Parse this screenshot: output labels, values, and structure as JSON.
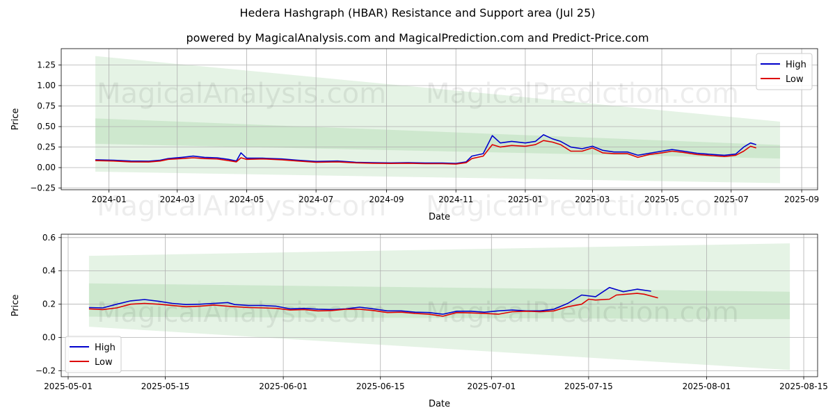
{
  "title": "Hedera Hashgraph (HBAR) Resistance and Support area (Jul 25)",
  "subtitle": "powered by MagicalAnalysis.com and MagicalPrediction.com and Predict-Price.com",
  "watermarks": [
    "MagicalAnalysis.com",
    "MagicalPrediction.com"
  ],
  "colors": {
    "high": "#0000cc",
    "low": "#dd0000",
    "band": "#2ca02c",
    "grid": "#b0b0b0"
  },
  "chart_data": [
    {
      "type": "line",
      "xlabel": "Date",
      "ylabel": "Price",
      "grid": true,
      "legend_position": "top-right",
      "x_ticks": [
        "2024-01",
        "2024-03",
        "2024-05",
        "2024-07",
        "2024-09",
        "2024-11",
        "2025-01",
        "2025-03",
        "2025-05",
        "2025-07",
        "2025-09"
      ],
      "y_ticks": [
        "−0.25",
        "0.00",
        "0.25",
        "0.50",
        "0.75",
        "1.00",
        "1.25"
      ],
      "ylim": [
        -0.27,
        1.45
      ],
      "xlim": [
        "2023-11-20",
        "2025-09-15"
      ],
      "series": [
        {
          "name": "High",
          "color": "#0000cc",
          "points": [
            [
              "2023-12-20",
              0.095
            ],
            [
              "2024-01-05",
              0.09
            ],
            [
              "2024-01-20",
              0.08
            ],
            [
              "2024-02-05",
              0.078
            ],
            [
              "2024-02-15",
              0.09
            ],
            [
              "2024-02-22",
              0.11
            ],
            [
              "2024-03-05",
              0.125
            ],
            [
              "2024-03-15",
              0.14
            ],
            [
              "2024-03-25",
              0.125
            ],
            [
              "2024-04-05",
              0.12
            ],
            [
              "2024-04-15",
              0.1
            ],
            [
              "2024-04-22",
              0.08
            ],
            [
              "2024-04-26",
              0.18
            ],
            [
              "2024-05-01",
              0.115
            ],
            [
              "2024-05-15",
              0.115
            ],
            [
              "2024-06-01",
              0.105
            ],
            [
              "2024-06-15",
              0.09
            ],
            [
              "2024-07-01",
              0.075
            ],
            [
              "2024-07-20",
              0.08
            ],
            [
              "2024-08-05",
              0.065
            ],
            [
              "2024-08-20",
              0.06
            ],
            [
              "2024-09-05",
              0.057
            ],
            [
              "2024-09-20",
              0.06
            ],
            [
              "2024-10-05",
              0.055
            ],
            [
              "2024-10-20",
              0.055
            ],
            [
              "2024-11-01",
              0.05
            ],
            [
              "2024-11-10",
              0.07
            ],
            [
              "2024-11-15",
              0.14
            ],
            [
              "2024-11-25",
              0.17
            ],
            [
              "2024-12-03",
              0.39
            ],
            [
              "2024-12-10",
              0.3
            ],
            [
              "2024-12-20",
              0.32
            ],
            [
              "2025-01-01",
              0.3
            ],
            [
              "2025-01-10",
              0.32
            ],
            [
              "2025-01-17",
              0.4
            ],
            [
              "2025-01-25",
              0.35
            ],
            [
              "2025-02-01",
              0.32
            ],
            [
              "2025-02-10",
              0.25
            ],
            [
              "2025-02-20",
              0.23
            ],
            [
              "2025-03-01",
              0.26
            ],
            [
              "2025-03-10",
              0.21
            ],
            [
              "2025-03-20",
              0.19
            ],
            [
              "2025-04-01",
              0.19
            ],
            [
              "2025-04-10",
              0.15
            ],
            [
              "2025-04-20",
              0.175
            ],
            [
              "2025-05-01",
              0.2
            ],
            [
              "2025-05-10",
              0.22
            ],
            [
              "2025-05-20",
              0.2
            ],
            [
              "2025-06-01",
              0.175
            ],
            [
              "2025-06-15",
              0.16
            ],
            [
              "2025-06-25",
              0.15
            ],
            [
              "2025-07-05",
              0.165
            ],
            [
              "2025-07-12",
              0.25
            ],
            [
              "2025-07-18",
              0.3
            ],
            [
              "2025-07-23",
              0.28
            ]
          ]
        },
        {
          "name": "Low",
          "color": "#dd0000",
          "points": [
            [
              "2023-12-20",
              0.085
            ],
            [
              "2024-01-05",
              0.08
            ],
            [
              "2024-01-20",
              0.07
            ],
            [
              "2024-02-05",
              0.068
            ],
            [
              "2024-02-15",
              0.08
            ],
            [
              "2024-02-22",
              0.1
            ],
            [
              "2024-03-05",
              0.11
            ],
            [
              "2024-03-15",
              0.12
            ],
            [
              "2024-03-25",
              0.11
            ],
            [
              "2024-04-05",
              0.105
            ],
            [
              "2024-04-15",
              0.085
            ],
            [
              "2024-04-22",
              0.07
            ],
            [
              "2024-04-26",
              0.12
            ],
            [
              "2024-05-01",
              0.1
            ],
            [
              "2024-05-15",
              0.105
            ],
            [
              "2024-06-01",
              0.095
            ],
            [
              "2024-06-15",
              0.08
            ],
            [
              "2024-07-01",
              0.065
            ],
            [
              "2024-07-20",
              0.07
            ],
            [
              "2024-08-05",
              0.058
            ],
            [
              "2024-08-20",
              0.053
            ],
            [
              "2024-09-05",
              0.05
            ],
            [
              "2024-09-20",
              0.053
            ],
            [
              "2024-10-05",
              0.048
            ],
            [
              "2024-10-20",
              0.048
            ],
            [
              "2024-11-01",
              0.043
            ],
            [
              "2024-11-10",
              0.06
            ],
            [
              "2024-11-15",
              0.11
            ],
            [
              "2024-11-25",
              0.14
            ],
            [
              "2024-12-03",
              0.28
            ],
            [
              "2024-12-10",
              0.25
            ],
            [
              "2024-12-20",
              0.27
            ],
            [
              "2025-01-01",
              0.26
            ],
            [
              "2025-01-10",
              0.28
            ],
            [
              "2025-01-17",
              0.33
            ],
            [
              "2025-01-25",
              0.31
            ],
            [
              "2025-02-01",
              0.28
            ],
            [
              "2025-02-10",
              0.2
            ],
            [
              "2025-02-20",
              0.2
            ],
            [
              "2025-03-01",
              0.24
            ],
            [
              "2025-03-10",
              0.18
            ],
            [
              "2025-03-20",
              0.17
            ],
            [
              "2025-04-01",
              0.17
            ],
            [
              "2025-04-10",
              0.125
            ],
            [
              "2025-04-20",
              0.16
            ],
            [
              "2025-05-01",
              0.18
            ],
            [
              "2025-05-10",
              0.2
            ],
            [
              "2025-05-20",
              0.185
            ],
            [
              "2025-06-01",
              0.16
            ],
            [
              "2025-06-15",
              0.145
            ],
            [
              "2025-06-25",
              0.135
            ],
            [
              "2025-07-05",
              0.15
            ],
            [
              "2025-07-12",
              0.2
            ],
            [
              "2025-07-18",
              0.26
            ],
            [
              "2025-07-23",
              0.24
            ]
          ]
        }
      ],
      "bands": [
        {
          "x": [
            "2023-12-20",
            "2025-08-13"
          ],
          "upper": [
            1.36,
            0.56
          ],
          "lower": [
            -0.05,
            -0.19
          ]
        },
        {
          "x": [
            "2023-12-20",
            "2025-08-13"
          ],
          "upper": [
            0.6,
            0.275
          ],
          "lower": [
            0.29,
            0.11
          ]
        }
      ]
    },
    {
      "type": "line",
      "xlabel": "Date",
      "ylabel": "Price",
      "grid": true,
      "legend_position": "bottom-left",
      "x_ticks": [
        "2025-05-01",
        "2025-05-15",
        "2025-06-01",
        "2025-06-15",
        "2025-07-01",
        "2025-07-15",
        "2025-08-01",
        "2025-08-15"
      ],
      "y_ticks": [
        "−0.2",
        "0.0",
        "0.2",
        "0.4",
        "0.6"
      ],
      "ylim": [
        -0.235,
        0.62
      ],
      "xlim": [
        "2025-04-30",
        "2025-08-17"
      ],
      "series": [
        {
          "name": "High",
          "color": "#0000cc",
          "points": [
            [
              "2025-05-04",
              0.18
            ],
            [
              "2025-05-06",
              0.178
            ],
            [
              "2025-05-08",
              0.2
            ],
            [
              "2025-05-10",
              0.22
            ],
            [
              "2025-05-12",
              0.228
            ],
            [
              "2025-05-14",
              0.218
            ],
            [
              "2025-05-16",
              0.205
            ],
            [
              "2025-05-18",
              0.198
            ],
            [
              "2025-05-20",
              0.2
            ],
            [
              "2025-05-22",
              0.205
            ],
            [
              "2025-05-24",
              0.21
            ],
            [
              "2025-05-25",
              0.198
            ],
            [
              "2025-05-27",
              0.192
            ],
            [
              "2025-05-29",
              0.192
            ],
            [
              "2025-05-31",
              0.188
            ],
            [
              "2025-06-02",
              0.172
            ],
            [
              "2025-06-04",
              0.175
            ],
            [
              "2025-06-06",
              0.17
            ],
            [
              "2025-06-08",
              0.168
            ],
            [
              "2025-06-10",
              0.172
            ],
            [
              "2025-06-12",
              0.182
            ],
            [
              "2025-06-14",
              0.172
            ],
            [
              "2025-06-16",
              0.16
            ],
            [
              "2025-06-18",
              0.16
            ],
            [
              "2025-06-20",
              0.152
            ],
            [
              "2025-06-22",
              0.15
            ],
            [
              "2025-06-24",
              0.14
            ],
            [
              "2025-06-26",
              0.158
            ],
            [
              "2025-06-28",
              0.158
            ],
            [
              "2025-06-30",
              0.152
            ],
            [
              "2025-07-02",
              0.16
            ],
            [
              "2025-07-04",
              0.165
            ],
            [
              "2025-07-06",
              0.16
            ],
            [
              "2025-07-08",
              0.16
            ],
            [
              "2025-07-10",
              0.17
            ],
            [
              "2025-07-12",
              0.205
            ],
            [
              "2025-07-14",
              0.255
            ],
            [
              "2025-07-16",
              0.245
            ],
            [
              "2025-07-18",
              0.3
            ],
            [
              "2025-07-20",
              0.275
            ],
            [
              "2025-07-22",
              0.29
            ],
            [
              "2025-07-24",
              0.278
            ]
          ]
        },
        {
          "name": "Low",
          "color": "#dd0000",
          "points": [
            [
              "2025-05-04",
              0.172
            ],
            [
              "2025-05-06",
              0.168
            ],
            [
              "2025-05-08",
              0.178
            ],
            [
              "2025-05-10",
              0.2
            ],
            [
              "2025-05-12",
              0.205
            ],
            [
              "2025-05-14",
              0.2
            ],
            [
              "2025-05-16",
              0.192
            ],
            [
              "2025-05-18",
              0.185
            ],
            [
              "2025-05-20",
              0.188
            ],
            [
              "2025-05-22",
              0.195
            ],
            [
              "2025-05-24",
              0.188
            ],
            [
              "2025-05-25",
              0.185
            ],
            [
              "2025-05-27",
              0.18
            ],
            [
              "2025-05-29",
              0.178
            ],
            [
              "2025-05-31",
              0.175
            ],
            [
              "2025-06-02",
              0.165
            ],
            [
              "2025-06-04",
              0.168
            ],
            [
              "2025-06-06",
              0.16
            ],
            [
              "2025-06-08",
              0.162
            ],
            [
              "2025-06-10",
              0.17
            ],
            [
              "2025-06-12",
              0.17
            ],
            [
              "2025-06-14",
              0.162
            ],
            [
              "2025-06-16",
              0.15
            ],
            [
              "2025-06-18",
              0.152
            ],
            [
              "2025-06-20",
              0.145
            ],
            [
              "2025-06-22",
              0.14
            ],
            [
              "2025-06-24",
              0.128
            ],
            [
              "2025-06-26",
              0.15
            ],
            [
              "2025-06-28",
              0.148
            ],
            [
              "2025-06-30",
              0.145
            ],
            [
              "2025-07-02",
              0.14
            ],
            [
              "2025-07-04",
              0.155
            ],
            [
              "2025-07-06",
              0.158
            ],
            [
              "2025-07-08",
              0.155
            ],
            [
              "2025-07-10",
              0.16
            ],
            [
              "2025-07-12",
              0.185
            ],
            [
              "2025-07-14",
              0.2
            ],
            [
              "2025-07-15",
              0.23
            ],
            [
              "2025-07-16",
              0.225
            ],
            [
              "2025-07-18",
              0.23
            ],
            [
              "2025-07-19",
              0.255
            ],
            [
              "2025-07-22",
              0.265
            ],
            [
              "2025-07-23",
              0.26
            ],
            [
              "2025-07-25",
              0.238
            ]
          ]
        }
      ],
      "bands": [
        {
          "x": [
            "2025-05-04",
            "2025-08-13"
          ],
          "upper": [
            0.49,
            0.565
          ],
          "lower": [
            0.065,
            -0.195
          ]
        },
        {
          "x": [
            "2025-05-04",
            "2025-08-13"
          ],
          "upper": [
            0.325,
            0.275
          ],
          "lower": [
            0.125,
            0.11
          ]
        }
      ]
    }
  ]
}
